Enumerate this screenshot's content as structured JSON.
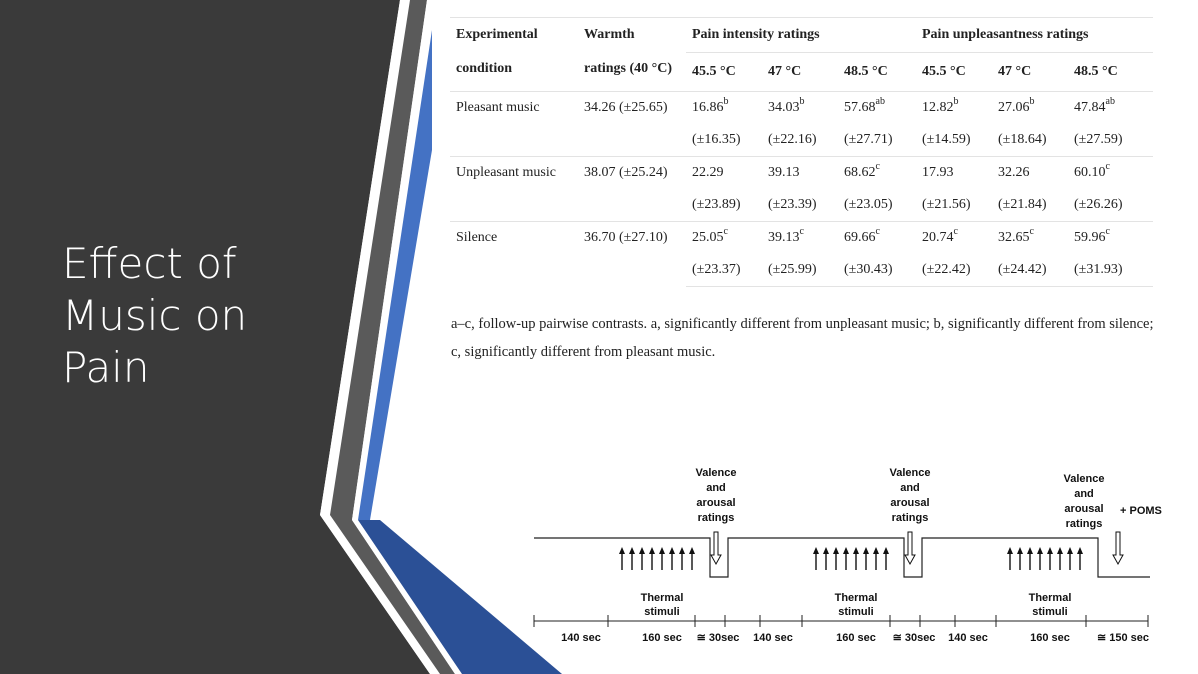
{
  "slide": {
    "title_lines": [
      "Effect of",
      "Music on",
      "Pain"
    ],
    "colors": {
      "sidebar": "#3a3a3a",
      "accent_blue": "#4472c4",
      "dark_blue": "#2b5096",
      "gray_stripe": "#5a5a5a"
    }
  },
  "table": {
    "headers": {
      "condition_l1": "Experimental",
      "condition_l2": "condition",
      "warmth_l1": "Warmth",
      "warmth_l2": "ratings (40 °C)",
      "pain_intensity": "Pain intensity ratings",
      "pain_unpleasantness": "Pain unpleasantness ratings",
      "temps": [
        "45.5 °C",
        "47 °C",
        "48.5 °C",
        "45.5 °C",
        "47 °C",
        "48.5 °C"
      ]
    },
    "rows": [
      {
        "condition": "Pleasant music",
        "warmth": "34.26 (±25.65)",
        "values": [
          {
            "v": "16.86",
            "sup": "b",
            "sd": "(±16.35)"
          },
          {
            "v": "34.03",
            "sup": "b",
            "sd": "(±22.16)"
          },
          {
            "v": "57.68",
            "sup": "ab",
            "sd": "(±27.71)"
          },
          {
            "v": "12.82",
            "sup": "b",
            "sd": "(±14.59)"
          },
          {
            "v": "27.06",
            "sup": "b",
            "sd": "(±18.64)"
          },
          {
            "v": "47.84",
            "sup": "ab",
            "sd": "(±27.59)"
          }
        ]
      },
      {
        "condition": "Unpleasant music",
        "warmth": "38.07 (±25.24)",
        "values": [
          {
            "v": "22.29",
            "sup": "",
            "sd": "(±23.89)"
          },
          {
            "v": "39.13",
            "sup": "",
            "sd": "(±23.39)"
          },
          {
            "v": "68.62",
            "sup": "c",
            "sd": "(±23.05)"
          },
          {
            "v": "17.93",
            "sup": "",
            "sd": "(±21.56)"
          },
          {
            "v": "32.26",
            "sup": "",
            "sd": "(±21.84)"
          },
          {
            "v": "60.10",
            "sup": "c",
            "sd": "(±26.26)"
          }
        ]
      },
      {
        "condition": "Silence",
        "warmth": "36.70 (±27.10)",
        "values": [
          {
            "v": "25.05",
            "sup": "c",
            "sd": "(±23.37)"
          },
          {
            "v": "39.13",
            "sup": "c",
            "sd": "(±25.99)"
          },
          {
            "v": "69.66",
            "sup": "c",
            "sd": "(±30.43)"
          },
          {
            "v": "20.74",
            "sup": "c",
            "sd": "(±22.42)"
          },
          {
            "v": "32.65",
            "sup": "c",
            "sd": "(±24.42)"
          },
          {
            "v": "59.96",
            "sup": "c",
            "sd": "(±31.93)"
          }
        ]
      }
    ],
    "footnote": "a–c, follow-up pairwise contrasts. a, significantly different from unpleasant music; b, significantly different from silence; c, significantly different from pleasant music."
  },
  "timeline": {
    "ratings_label": [
      "Valence",
      "and",
      "arousal",
      "ratings"
    ],
    "poms_label": "+ POMS",
    "stimuli_label": [
      "Thermal",
      "stimuli"
    ],
    "durations": [
      "140 sec",
      "160 sec",
      "≅ 30sec",
      "140 sec",
      "160 sec",
      "≅ 30sec",
      "140 sec",
      "160 sec",
      "≅ 150 sec"
    ]
  }
}
